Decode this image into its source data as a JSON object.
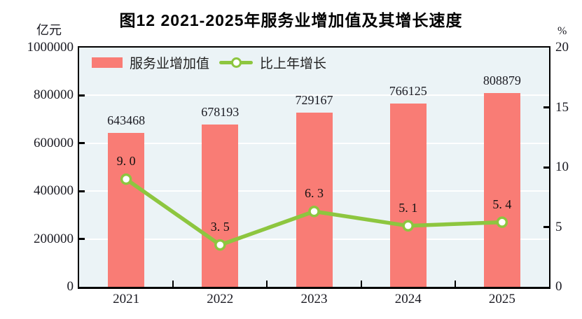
{
  "figure": {
    "title": "图12  2021-2025年服务业增加值及其增长速度",
    "left_axis": {
      "unit": "亿元",
      "ticks": [
        "1000000",
        "800000",
        "600000",
        "400000",
        "200000",
        "0"
      ]
    },
    "right_axis": {
      "unit": "%",
      "ticks": [
        "20",
        "15",
        "10",
        "5",
        "0"
      ]
    },
    "legend": {
      "bar_label": "服务业增加值",
      "line_label": "比上年增长"
    }
  },
  "colors": {
    "bar": "#F97C75",
    "line": "#8DC63F",
    "marker_fill": "#FFFFFF",
    "plot_bg": "#EBF3F6",
    "grid": "#FFFFFF",
    "axis": "#000000",
    "text": "#1A1A22"
  },
  "chart_data": {
    "type": "bar",
    "combo": "bar+line",
    "title": "图12 2021-2025年服务业增加值及其增长速度",
    "categories": [
      "2021",
      "2022",
      "2023",
      "2024",
      "2025"
    ],
    "series": [
      {
        "name": "服务业增加值",
        "type": "bar",
        "axis": "left",
        "unit": "亿元",
        "values": [
          643468,
          678193,
          729167,
          766125,
          808879
        ],
        "labels": [
          "643468",
          "678193",
          "729167",
          "766125",
          "808879"
        ]
      },
      {
        "name": "比上年增长",
        "type": "line",
        "axis": "right",
        "unit": "%",
        "values": [
          9.0,
          3.5,
          6.3,
          5.1,
          5.4
        ],
        "labels": [
          "9. 0",
          "3. 5",
          "6. 3",
          "5. 1",
          "5. 4"
        ]
      }
    ],
    "left_ylim": [
      0,
      1000000
    ],
    "right_ylim": [
      0,
      20
    ],
    "left_tick_step": 200000,
    "right_tick_step": 5,
    "grid": true,
    "legend_position": "top-left-inside"
  }
}
